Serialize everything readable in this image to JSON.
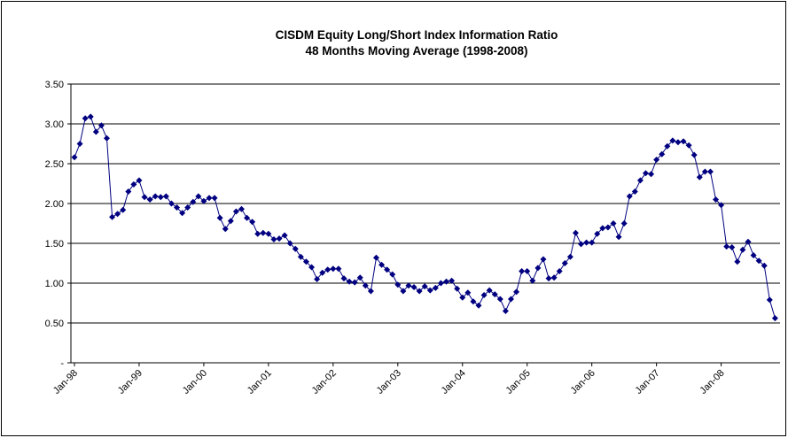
{
  "chart_data": {
    "type": "line",
    "title": "CISDM Equity Long/Short Index Information Ratio",
    "subtitle": "48 Months Moving Average (1998-2008)",
    "color": "#000080",
    "grid": true,
    "ylim": [
      0,
      3.5
    ],
    "yticks": [
      {
        "value": 0,
        "label": "-"
      },
      {
        "value": 0.5,
        "label": "0.50"
      },
      {
        "value": 1,
        "label": "1.00"
      },
      {
        "value": 1.5,
        "label": "1.50"
      },
      {
        "value": 2,
        "label": "2.00"
      },
      {
        "value": 2.5,
        "label": "2.50"
      },
      {
        "value": 3,
        "label": "3.00"
      },
      {
        "value": 3.5,
        "label": "3.50"
      }
    ],
    "categories": [
      "Jan-98",
      null,
      null,
      null,
      null,
      null,
      null,
      null,
      null,
      null,
      null,
      null,
      "Jan-99",
      null,
      null,
      null,
      null,
      null,
      null,
      null,
      null,
      null,
      null,
      null,
      "Jan-00",
      null,
      null,
      null,
      null,
      null,
      null,
      null,
      null,
      null,
      null,
      null,
      "Jan-01",
      null,
      null,
      null,
      null,
      null,
      null,
      null,
      null,
      null,
      null,
      null,
      "Jan-02",
      null,
      null,
      null,
      null,
      null,
      null,
      null,
      null,
      null,
      null,
      null,
      "Jan-03",
      null,
      null,
      null,
      null,
      null,
      null,
      null,
      null,
      null,
      null,
      null,
      "Jan-04",
      null,
      null,
      null,
      null,
      null,
      null,
      null,
      null,
      null,
      null,
      null,
      "Jan-05",
      null,
      null,
      null,
      null,
      null,
      null,
      null,
      null,
      null,
      null,
      null,
      "Jan-06",
      null,
      null,
      null,
      null,
      null,
      null,
      null,
      null,
      null,
      null,
      null,
      "Jan-07",
      null,
      null,
      null,
      null,
      null,
      null,
      null,
      null,
      null,
      null,
      null,
      "Jan-08",
      null,
      null,
      null,
      null,
      null,
      null,
      null,
      null,
      null,
      null
    ],
    "values": [
      2.58,
      2.75,
      3.07,
      3.09,
      2.9,
      2.98,
      2.82,
      1.83,
      1.87,
      1.92,
      2.15,
      2.24,
      2.29,
      2.08,
      2.05,
      2.09,
      2.08,
      2.09,
      2.0,
      1.95,
      1.88,
      1.95,
      2.02,
      2.09,
      2.03,
      2.07,
      2.07,
      1.82,
      1.68,
      1.78,
      1.9,
      1.93,
      1.82,
      1.77,
      1.62,
      1.63,
      1.62,
      1.55,
      1.56,
      1.6,
      1.5,
      1.43,
      1.33,
      1.27,
      1.2,
      1.05,
      1.13,
      1.17,
      1.18,
      1.18,
      1.06,
      1.02,
      1.01,
      1.07,
      0.97,
      0.9,
      1.32,
      1.23,
      1.17,
      1.11,
      0.98,
      0.9,
      0.97,
      0.95,
      0.9,
      0.96,
      0.91,
      0.94,
      1.0,
      1.02,
      1.03,
      0.93,
      0.82,
      0.88,
      0.77,
      0.72,
      0.85,
      0.91,
      0.86,
      0.8,
      0.65,
      0.8,
      0.89,
      1.15,
      1.15,
      1.03,
      1.19,
      1.3,
      1.06,
      1.07,
      1.15,
      1.25,
      1.33,
      1.63,
      1.49,
      1.51,
      1.51,
      1.62,
      1.69,
      1.7,
      1.75,
      1.58,
      1.75,
      2.09,
      2.15,
      2.29,
      2.38,
      2.37,
      2.55,
      2.62,
      2.72,
      2.79,
      2.77,
      2.78,
      2.73,
      2.61,
      2.33,
      2.4,
      2.4,
      2.05,
      1.98,
      1.46,
      1.45,
      1.27,
      1.42,
      1.52,
      1.35,
      1.28,
      1.22,
      0.79,
      0.56
    ]
  }
}
